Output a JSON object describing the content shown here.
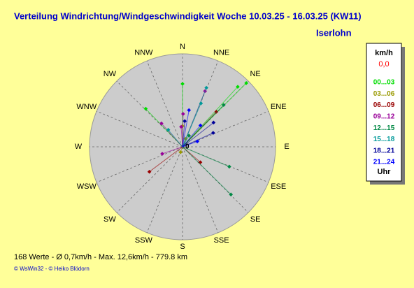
{
  "chart_data": {
    "type": "polar-scatter",
    "title": "Verteilung Windrichtung/Windgeschwindigkeit  Woche 10.03.25 - 16.03.25 (KW11)",
    "subtitle": "Iserlohn",
    "directions": [
      "N",
      "NNE",
      "NE",
      "ENE",
      "E",
      "ESE",
      "SE",
      "SSE",
      "S",
      "SSW",
      "SW",
      "WSW",
      "W",
      "WNW",
      "NW",
      "NNW"
    ],
    "center_label": "0",
    "rlim": [
      0,
      13
    ],
    "legend_title": "km/h",
    "legend_value": "0,0",
    "legend_footer": "Uhr",
    "series": [
      {
        "name": "00...03",
        "color": "#00dd00",
        "direction": [
          45,
          42.6,
          0,
          316
        ],
        "speed": [
          12.6,
          11.4,
          8.8,
          7.4
        ]
      },
      {
        "name": "03...06",
        "color": "#999900",
        "direction": [
          0,
          20,
          200
        ],
        "speed": [
          2.9,
          1.2,
          0.8
        ]
      },
      {
        "name": "06...09",
        "color": "#990000",
        "direction": [
          44,
          131,
          233
        ],
        "speed": [
          6.8,
          3.3,
          5.8
        ]
      },
      {
        "name": "09...12",
        "color": "#990099",
        "direction": [
          22,
          1,
          318,
          251,
          356
        ],
        "speed": [
          8.4,
          4.6,
          4.4,
          3.0,
          2.8
        ]
      },
      {
        "name": "12...15",
        "color": "#008844",
        "direction": [
          44.5,
          113,
          134.6,
          30
        ],
        "speed": [
          8.2,
          7.1,
          9.5,
          1.8
        ]
      },
      {
        "name": "15...18",
        "color": "#009999",
        "direction": [
          22,
          23,
          320
        ],
        "speed": [
          8.9,
          6.6,
          3.1
        ]
      },
      {
        "name": "18...21",
        "color": "#000099",
        "direction": [
          52,
          65.6,
          5
        ],
        "speed": [
          5.5,
          4.7,
          3.6
        ]
      },
      {
        "name": "21...24",
        "color": "#0000ff",
        "direction": [
          40,
          70,
          10
        ],
        "speed": [
          3.9,
          2.2,
          5.2
        ]
      }
    ],
    "footer": "168 Werte   -   Ø 0,7km/h   -  Max. 12,6km/h   -   779.8 km",
    "credit": "© WsWin32  -  © Heiko Blödorn"
  }
}
